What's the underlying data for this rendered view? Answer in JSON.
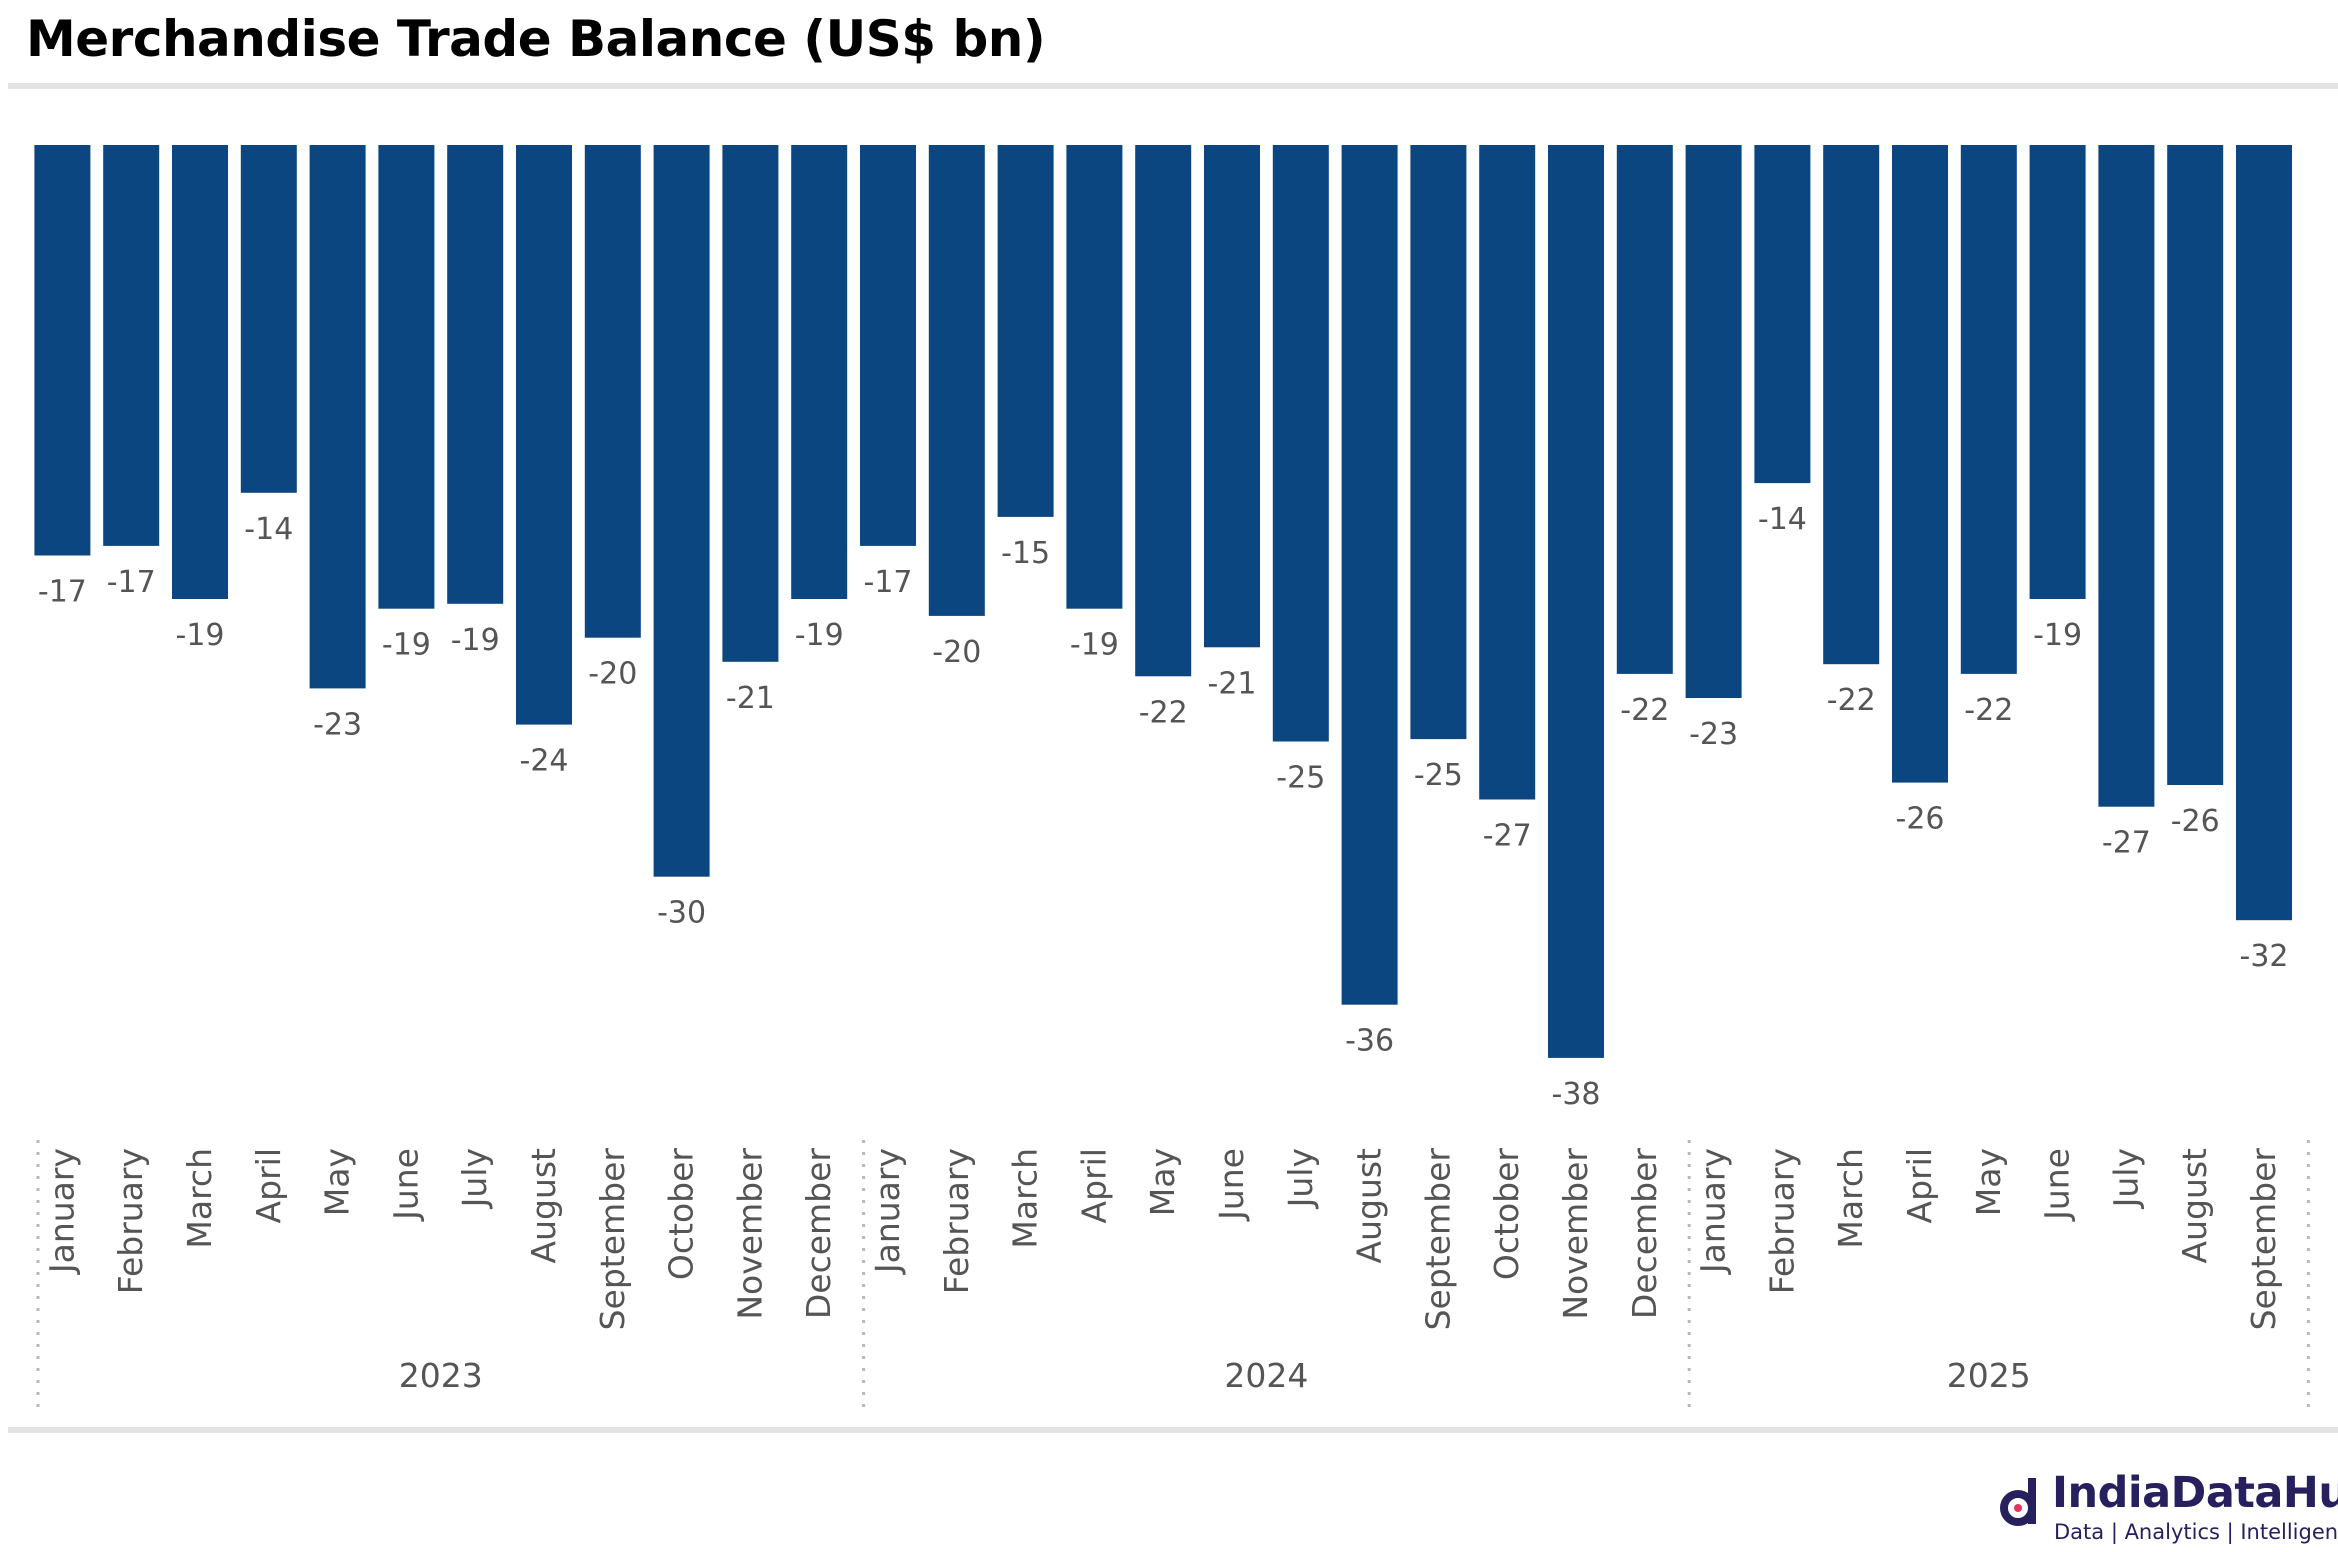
{
  "title": "Merchandise Trade Balance (US$ bn)",
  "colors": {
    "bar": "#0b4680",
    "label": "#555555",
    "rule": "#e3e3e3",
    "brand": "#27205e",
    "brand_accent": "#e8325a"
  },
  "chart_data": {
    "type": "bar",
    "title": "Merchandise Trade Balance (US$ bn)",
    "ylim": [
      -38,
      0
    ],
    "grid": false,
    "legend": "none",
    "years": [
      {
        "label": "2023",
        "months": 12
      },
      {
        "label": "2024",
        "months": 12
      },
      {
        "label": "2025",
        "months": 9
      }
    ],
    "categories": [
      "January",
      "February",
      "March",
      "April",
      "May",
      "June",
      "July",
      "August",
      "September",
      "October",
      "November",
      "December",
      "January",
      "February",
      "March",
      "April",
      "May",
      "June",
      "July",
      "August",
      "September",
      "October",
      "November",
      "December",
      "January",
      "February",
      "March",
      "April",
      "May",
      "June",
      "July",
      "August",
      "September"
    ],
    "values": [
      -17,
      -16.6,
      -18.8,
      -14.4,
      -22.5,
      -19.2,
      -19,
      -24,
      -20.4,
      -30.3,
      -21.4,
      -18.8,
      -16.6,
      -19.5,
      -15.4,
      -19.2,
      -22,
      -20.8,
      -24.7,
      -35.6,
      -24.6,
      -27.1,
      -37.8,
      -21.9,
      -22.9,
      -14,
      -21.5,
      -26.4,
      -21.9,
      -18.8,
      -27.4,
      -26.5,
      -32.1
    ],
    "data_labels": [
      "-17",
      "-17",
      "-19",
      "-14",
      "-23",
      "-19",
      "-19",
      "-24",
      "-20",
      "-30",
      "-21",
      "-19",
      "-17",
      "-20",
      "-15",
      "-19",
      "-22",
      "-21",
      "-25",
      "-36",
      "-25",
      "-27",
      "-38",
      "-22",
      "-23",
      "-14",
      "-22",
      "-26",
      "-22",
      "-19",
      "-27",
      "-26",
      "-32"
    ]
  },
  "logo": {
    "brand": "IndiaDataHub",
    "tagline": "Data | Analytics | Intelligence"
  }
}
